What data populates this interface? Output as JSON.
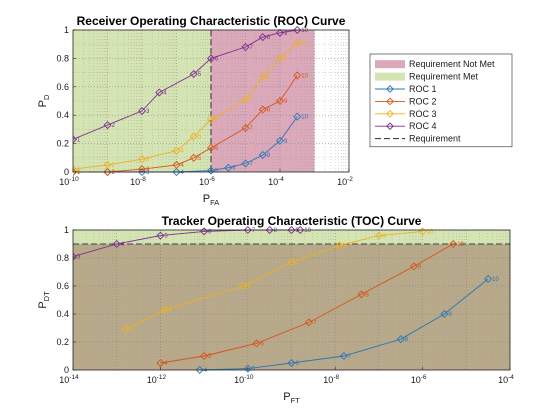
{
  "chart_data": [
    {
      "type": "line",
      "title": "Receiver Operating Characteristic (ROC) Curve",
      "xlabel": {
        "main": "P",
        "sub": "FA"
      },
      "ylabel": {
        "main": "P",
        "sub": "D"
      },
      "xscale": "log",
      "xlim": [
        -10,
        -2
      ],
      "ylim": [
        0,
        1
      ],
      "x_ticks": [
        -10,
        -8,
        -6,
        -4,
        -2
      ],
      "y_ticks": [
        0,
        0.2,
        0.4,
        0.6,
        0.8,
        1
      ],
      "y_tick_labels": [
        "0",
        "0.2",
        "0.4",
        "0.6",
        "0.8",
        "1"
      ],
      "grid": "major and minor dotted",
      "requirement": {
        "name": "Requirement",
        "x": -6,
        "style": "vertical dashed line",
        "color": "#404040"
      },
      "regions": [
        {
          "name": "Requirement Not Met",
          "color": "#dba9b9",
          "range": [
            -6,
            -3
          ]
        },
        {
          "name": "Requirement Met",
          "color": "#d5e4b3",
          "range": [
            -10,
            -6
          ]
        }
      ],
      "legend_position": "right",
      "series": [
        {
          "name": "ROC 1",
          "color": "#2b76b6",
          "points": [
            {
              "x": -10,
              "y": 0.0,
              "label": "1"
            },
            {
              "x": -9,
              "y": 0.0,
              "label": "2"
            },
            {
              "x": -8,
              "y": 0.0,
              "label": "3"
            },
            {
              "x": -7,
              "y": 0.0,
              "label": "4"
            },
            {
              "x": -6,
              "y": 0.01,
              "label": "5"
            },
            {
              "x": -5.5,
              "y": 0.03,
              "label": "6"
            },
            {
              "x": -5,
              "y": 0.06,
              "label": "7"
            },
            {
              "x": -4.5,
              "y": 0.12,
              "label": "8"
            },
            {
              "x": -4,
              "y": 0.22,
              "label": "9"
            },
            {
              "x": -3.5,
              "y": 0.39,
              "label": "10"
            }
          ]
        },
        {
          "name": "ROC 2",
          "color": "#d95319",
          "points": [
            {
              "x": -10,
              "y": 0.0,
              "label": "1"
            },
            {
              "x": -9,
              "y": 0.0,
              "label": "2"
            },
            {
              "x": -8,
              "y": 0.02,
              "label": "3"
            },
            {
              "x": -7,
              "y": 0.05,
              "label": "4"
            },
            {
              "x": -6.5,
              "y": 0.1,
              "label": "5"
            },
            {
              "x": -6,
              "y": 0.17,
              "label": "6"
            },
            {
              "x": -5,
              "y": 0.31,
              "label": "7"
            },
            {
              "x": -4.5,
              "y": 0.44,
              "label": "8"
            },
            {
              "x": -4,
              "y": 0.5,
              "label": "9"
            },
            {
              "x": -3.5,
              "y": 0.68,
              "label": "10"
            }
          ]
        },
        {
          "name": "ROC 3",
          "color": "#edb120",
          "points": [
            {
              "x": -10,
              "y": 0.02,
              "label": "1"
            },
            {
              "x": -9,
              "y": 0.05,
              "label": "2"
            },
            {
              "x": -8,
              "y": 0.09,
              "label": "3"
            },
            {
              "x": -7,
              "y": 0.15,
              "label": "4"
            },
            {
              "x": -6.5,
              "y": 0.25,
              "label": "5"
            },
            {
              "x": -6,
              "y": 0.37,
              "label": "6"
            },
            {
              "x": -5,
              "y": 0.51,
              "label": "7"
            },
            {
              "x": -4.5,
              "y": 0.67,
              "label": "8"
            },
            {
              "x": -4,
              "y": 0.8,
              "label": "9"
            },
            {
              "x": -3.5,
              "y": 0.91,
              "label": "10"
            }
          ]
        },
        {
          "name": "ROC 4",
          "color": "#7e2f8e",
          "points": [
            {
              "x": -10,
              "y": 0.23,
              "label": "1"
            },
            {
              "x": -9,
              "y": 0.33,
              "label": "2"
            },
            {
              "x": -8,
              "y": 0.43,
              "label": "3"
            },
            {
              "x": -7.5,
              "y": 0.56,
              "label": "4"
            },
            {
              "x": -6.5,
              "y": 0.69,
              "label": "5"
            },
            {
              "x": -6,
              "y": 0.8,
              "label": "6"
            },
            {
              "x": -5,
              "y": 0.88,
              "label": "7"
            },
            {
              "x": -4.5,
              "y": 0.95,
              "label": "8"
            },
            {
              "x": -4,
              "y": 0.98,
              "label": "9"
            },
            {
              "x": -3.5,
              "y": 1.0,
              "label": "10"
            }
          ]
        }
      ],
      "legend": [
        {
          "label": "Requirement Not Met",
          "kind": "patch",
          "color": "#dba9b9"
        },
        {
          "label": "Requirement Met",
          "kind": "patch",
          "color": "#d5e4b3"
        },
        {
          "label": "ROC 1",
          "kind": "line",
          "color": "#2b76b6"
        },
        {
          "label": "ROC 2",
          "kind": "line",
          "color": "#d95319"
        },
        {
          "label": "ROC 3",
          "kind": "line",
          "color": "#edb120"
        },
        {
          "label": "ROC 4",
          "kind": "line",
          "color": "#7e2f8e"
        },
        {
          "label": "Requirement",
          "kind": "dashed",
          "color": "#404040"
        }
      ]
    },
    {
      "type": "line",
      "title": "Tracker Operating Characteristic (TOC) Curve",
      "xlabel": {
        "main": "P",
        "sub": "FT"
      },
      "ylabel": {
        "main": "P",
        "sub": "DT"
      },
      "xscale": "log",
      "xlim": [
        -14,
        -4
      ],
      "ylim": [
        0,
        1
      ],
      "x_ticks": [
        -14,
        -12,
        -10,
        -8,
        -6,
        -4
      ],
      "y_ticks": [
        0,
        0.2,
        0.4,
        0.6,
        0.8,
        1
      ],
      "y_tick_labels": [
        "0",
        "0.2",
        "0.4",
        "0.6",
        "0.8",
        "1"
      ],
      "grid": "major and minor dotted",
      "requirement": {
        "name": "Requirement",
        "y": 0.9,
        "style": "horizontal dashed line",
        "color": "#404040"
      },
      "regions": [
        {
          "name": "Requirement Not Met",
          "color": "#b8a98a",
          "range": [
            0,
            0.9
          ]
        },
        {
          "name": "Requirement Met",
          "color": "#d5e4b3",
          "range": [
            0.9,
            1
          ]
        }
      ],
      "series": [
        {
          "name": "ROC 1",
          "color": "#2b76b6",
          "points": [
            {
              "x": -11.1,
              "y": 0.0,
              "label": "4"
            },
            {
              "x": -10,
              "y": 0.01,
              "label": "5"
            },
            {
              "x": -9,
              "y": 0.05,
              "label": "6"
            },
            {
              "x": -7.8,
              "y": 0.1,
              "label": "7"
            },
            {
              "x": -6.5,
              "y": 0.22,
              "label": "8"
            },
            {
              "x": -5.5,
              "y": 0.4,
              "label": "9"
            },
            {
              "x": -4.5,
              "y": 0.65,
              "label": "10"
            }
          ]
        },
        {
          "name": "ROC 2",
          "color": "#d95319",
          "points": [
            {
              "x": -12,
              "y": 0.05,
              "label": "4"
            },
            {
              "x": -11,
              "y": 0.1,
              "label": "5"
            },
            {
              "x": -9.8,
              "y": 0.19,
              "label": "6"
            },
            {
              "x": -8.6,
              "y": 0.34,
              "label": "7"
            },
            {
              "x": -7.4,
              "y": 0.54,
              "label": "8"
            },
            {
              "x": -6.2,
              "y": 0.74,
              "label": "9"
            },
            {
              "x": -5.3,
              "y": 0.9,
              "label": "10"
            }
          ]
        },
        {
          "name": "ROC 3",
          "color": "#edb120",
          "points": [
            {
              "x": -12.8,
              "y": 0.29,
              "label": "4"
            },
            {
              "x": -11.9,
              "y": 0.43,
              "label": "5"
            },
            {
              "x": -10.1,
              "y": 0.6,
              "label": "6"
            },
            {
              "x": -9,
              "y": 0.77,
              "label": "7"
            },
            {
              "x": -7.9,
              "y": 0.89,
              "label": "8"
            },
            {
              "x": -7,
              "y": 0.96,
              "label": "9"
            },
            {
              "x": -6,
              "y": 0.99,
              "label": "10"
            }
          ]
        },
        {
          "name": "ROC 4",
          "color": "#7e2f8e",
          "points": [
            {
              "x": -14,
              "y": 0.81,
              "label": "3"
            },
            {
              "x": -13,
              "y": 0.9,
              "label": "4"
            },
            {
              "x": -12,
              "y": 0.96,
              "label": "5"
            },
            {
              "x": -11,
              "y": 0.99,
              "label": "6"
            },
            {
              "x": -10,
              "y": 1.0,
              "label": "7"
            },
            {
              "x": -9.5,
              "y": 1.0,
              "label": "8"
            },
            {
              "x": -9,
              "y": 1.0,
              "label": "9"
            },
            {
              "x": -8.8,
              "y": 1.0,
              "label": "10"
            }
          ]
        }
      ]
    }
  ]
}
